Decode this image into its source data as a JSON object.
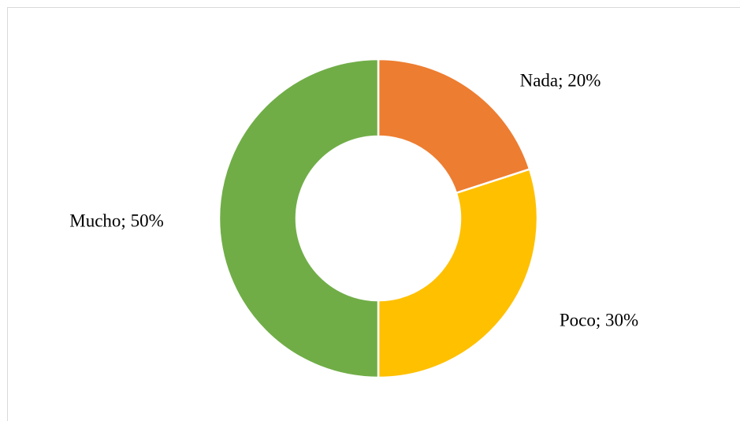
{
  "chart_data": {
    "type": "donut",
    "categories": [
      "Nada",
      "Poco",
      "Mucho"
    ],
    "values": [
      20,
      30,
      50
    ],
    "value_labels": [
      "Nada; 20%",
      "Poco; 30%",
      "Mucho; 50%"
    ],
    "colors": [
      "#ED7D31",
      "#FFC000",
      "#70AD47"
    ]
  }
}
